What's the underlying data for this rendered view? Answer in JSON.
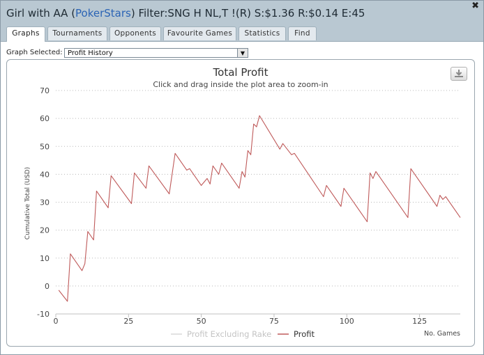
{
  "window": {
    "title_prefix": "Girl with AA (",
    "title_site": "PokerStars",
    "title_suffix": ") Filter:SNG H NL,T !(R) S:$1.36 R:$0.14 E:45",
    "close_symbol": "✖"
  },
  "tabs": [
    {
      "label": "Graphs",
      "active": true
    },
    {
      "label": "Tournaments",
      "active": false
    },
    {
      "label": "Opponents",
      "active": false
    },
    {
      "label": "Favourite Games",
      "active": false
    },
    {
      "label": "Statistics",
      "active": false
    },
    {
      "label": "Find",
      "active": false
    }
  ],
  "graph_select": {
    "label": "Graph Selected:",
    "value": "Profit History"
  },
  "export_icon": "download-icon",
  "chart_data": {
    "type": "line",
    "title": "Total Profit",
    "subtitle": "Click and drag inside the plot area to zoom-in",
    "ylabel": "Cumulative Total (USD)",
    "xlabel": "No. Games",
    "xlim": [
      0,
      139
    ],
    "ylim": [
      -10,
      70
    ],
    "xticks": [
      0,
      25,
      50,
      75,
      100,
      125
    ],
    "yticks": [
      -10,
      0,
      10,
      20,
      30,
      40,
      50,
      60,
      70
    ],
    "grid": "horizontal dotted",
    "legend_position": "bottom-center",
    "series": [
      {
        "name": "Profit Excluding Rake",
        "color": "#d8d8d8",
        "values": []
      },
      {
        "name": "Profit",
        "color": "#bf5a5a",
        "points": [
          [
            1,
            -1.5
          ],
          [
            4,
            -5.5
          ],
          [
            5,
            11.5
          ],
          [
            9,
            5.5
          ],
          [
            10,
            8
          ],
          [
            11,
            19.5
          ],
          [
            13,
            16.5
          ],
          [
            14,
            34
          ],
          [
            18,
            28
          ],
          [
            19,
            39.5
          ],
          [
            26,
            29.5
          ],
          [
            27,
            40.5
          ],
          [
            31,
            35
          ],
          [
            32,
            43
          ],
          [
            39,
            33
          ],
          [
            41,
            47.5
          ],
          [
            45,
            41.5
          ],
          [
            46,
            42
          ],
          [
            50,
            36
          ],
          [
            52,
            38.5
          ],
          [
            53,
            36.5
          ],
          [
            54,
            43
          ],
          [
            56,
            40
          ],
          [
            57,
            44
          ],
          [
            63,
            35
          ],
          [
            64,
            41
          ],
          [
            65,
            39
          ],
          [
            66,
            48.5
          ],
          [
            67,
            47
          ],
          [
            68,
            58
          ],
          [
            69,
            57
          ],
          [
            70,
            61
          ],
          [
            77,
            49
          ],
          [
            78,
            51
          ],
          [
            81,
            47
          ],
          [
            82,
            47.5
          ],
          [
            92,
            32
          ],
          [
            93,
            36
          ],
          [
            98,
            28.5
          ],
          [
            99,
            35
          ],
          [
            107,
            23
          ],
          [
            108,
            40.5
          ],
          [
            109,
            38.5
          ],
          [
            110,
            41
          ],
          [
            121,
            24.5
          ],
          [
            122,
            42
          ],
          [
            131,
            28.5
          ],
          [
            132,
            32.5
          ],
          [
            133,
            31
          ],
          [
            134,
            32
          ],
          [
            139,
            24.5
          ]
        ]
      }
    ]
  }
}
